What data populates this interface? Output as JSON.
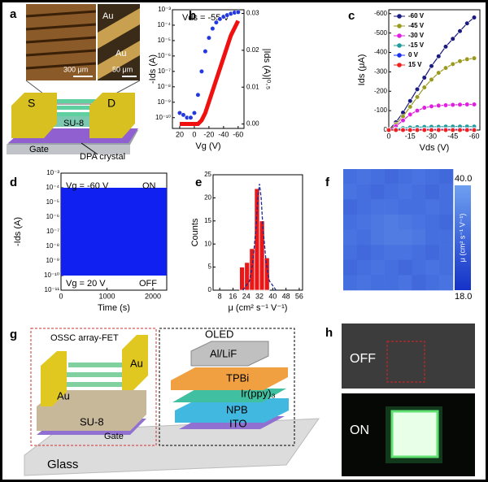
{
  "panel_a": {
    "label": "a",
    "photo_texts": [
      "Au",
      "Au",
      "300 μm",
      "50 μm"
    ],
    "device_texts": [
      "S",
      "D",
      "SU-8",
      "Gate",
      "DPA crystal"
    ]
  },
  "panel_g": {
    "label": "g",
    "texts": [
      "OSSC array-FET",
      "Au",
      "Au",
      "SU-8",
      "Gate",
      "OLED",
      "Al/LiF",
      "TPBi",
      "Ir(ppy)₃",
      "NPB",
      "ITO",
      "Glass"
    ]
  },
  "panel_h": {
    "label": "h",
    "texts": [
      "OFF",
      "ON"
    ]
  },
  "chart_data": [
    {
      "type": "line",
      "label": "b",
      "annotation": "Vds = -55 V",
      "xlabel": "Vg (V)",
      "ylabel": "-Ids (A)",
      "y2label": "|Ids (A)|⁰·⁵",
      "log": true,
      "x": [
        20,
        15,
        10,
        5,
        0,
        -5,
        -10,
        -15,
        -20,
        -25,
        -30,
        -35,
        -40,
        -45,
        -50,
        -55,
        -60
      ],
      "xlim": [
        30,
        -68
      ],
      "xticks": [
        20,
        0,
        -20,
        -40,
        -60
      ],
      "ylim": [
        2e-11,
        0.001
      ],
      "yticks": [
        {
          "value": 0.001,
          "label": "10⁻³"
        },
        {
          "value": 0.0001,
          "label": "10⁻⁴"
        },
        {
          "value": 1e-05,
          "label": "10⁻⁵"
        },
        {
          "value": 1e-06,
          "label": "10⁻⁶"
        },
        {
          "value": 1e-07,
          "label": "10⁻⁷"
        },
        {
          "value": 1e-08,
          "label": "10⁻⁸"
        },
        {
          "value": 1e-09,
          "label": "10⁻⁹"
        },
        {
          "value": 1e-10,
          "label": "10⁻¹⁰"
        }
      ],
      "y2lim": [
        -0.0012,
        0.031
      ],
      "y2ticks": [
        {
          "value": 0,
          "label": "0.00"
        },
        {
          "value": 0.01,
          "label": "0.01"
        },
        {
          "value": 0.02,
          "label": "0.02"
        },
        {
          "value": 0.03,
          "label": "0.03"
        }
      ],
      "series": [
        {
          "color": "#2438e0",
          "style": "markers",
          "values": [
            2e-10,
            1.5e-10,
            1e-10,
            1e-10,
            2e-10,
            3e-09,
            1e-07,
            2e-06,
            1.5e-05,
            6e-05,
            0.00015,
            0.00025,
            0.00035,
            0.00045,
            0.00055,
            0.00065,
            0.0007
          ]
        },
        {
          "color": "#f01010",
          "style": "line",
          "axis": "y2",
          "values": [
            0,
            0,
            0,
            0,
            0,
            0,
            0.001,
            0.003,
            0.006,
            0.009,
            0.012,
            0.015,
            0.018,
            0.021,
            0.024,
            0.026,
            0.028
          ]
        }
      ]
    },
    {
      "type": "line",
      "label": "c",
      "xlabel": "Vds (V)",
      "ylabel": "Ids (μA)",
      "legend": "upper left",
      "x": [
        0,
        -5,
        -10,
        -15,
        -20,
        -25,
        -30,
        -35,
        -40,
        -45,
        -50,
        -55,
        -60
      ],
      "xlim": [
        0,
        -64
      ],
      "xticks": [
        0,
        -15,
        -30,
        -45,
        -60
      ],
      "ylim": [
        0,
        -620
      ],
      "yticks": [
        0,
        -100,
        -200,
        -300,
        -400,
        -500,
        -600
      ],
      "series": [
        {
          "name": "-60 V",
          "color": "#1a1a80",
          "style": "line+markers",
          "values": [
            0,
            -40,
            -90,
            -150,
            -210,
            -270,
            -330,
            -380,
            -430,
            -470,
            -510,
            -550,
            -580
          ]
        },
        {
          "name": "-45 V",
          "color": "#9a9a20",
          "style": "line+markers",
          "values": [
            0,
            -30,
            -70,
            -120,
            -170,
            -220,
            -260,
            -295,
            -320,
            -340,
            -355,
            -365,
            -370
          ]
        },
        {
          "name": "-30 V",
          "color": "#e020e0",
          "style": "line+markers",
          "values": [
            0,
            -20,
            -50,
            -80,
            -100,
            -115,
            -122,
            -126,
            -128,
            -130,
            -131,
            -132,
            -132
          ]
        },
        {
          "name": "-15 V",
          "color": "#209a9a",
          "style": "line+markers",
          "values": [
            0,
            -5,
            -10,
            -13,
            -15,
            -16,
            -17,
            -17,
            -18,
            -18,
            -18,
            -18,
            -18
          ]
        },
        {
          "name": "0 V",
          "color": "#1a30f0",
          "style": "line+markers",
          "values": [
            0,
            -1,
            -2,
            -2,
            -3,
            -3,
            -3,
            -3,
            -3,
            -3,
            -3,
            -3,
            -3
          ]
        },
        {
          "name": "15 V",
          "color": "#f02020",
          "style": "line+markers",
          "values": [
            0,
            0,
            0,
            0,
            0,
            0,
            0,
            0,
            0,
            0,
            0,
            0,
            0
          ]
        }
      ]
    },
    {
      "type": "switching",
      "label": "d",
      "xlabel": "Time (s)",
      "ylabel": "-Ids (A)",
      "log": true,
      "color": "#1020f0",
      "annotations": [
        "Vg = -60 V",
        "ON",
        "Vg = 20 V",
        "OFF"
      ],
      "x": [
        0,
        2300
      ],
      "levels": [
        1e-10,
        0.0001
      ],
      "xlim": [
        0,
        2300
      ],
      "xticks": [
        0,
        1000,
        2000
      ],
      "ylim": [
        1e-11,
        0.001
      ],
      "yticks": [
        {
          "value": 0.001,
          "label": "10⁻³"
        },
        {
          "value": 0.0001,
          "label": "10⁻⁴"
        },
        {
          "value": 1e-05,
          "label": "10⁻⁵"
        },
        {
          "value": 1e-06,
          "label": "10⁻⁶"
        },
        {
          "value": 1e-07,
          "label": "10⁻⁷"
        },
        {
          "value": 1e-08,
          "label": "10⁻⁸"
        },
        {
          "value": 1e-09,
          "label": "10⁻⁹"
        },
        {
          "value": 1e-10,
          "label": "10⁻¹⁰"
        },
        {
          "value": 1e-11,
          "label": "10⁻¹¹"
        }
      ]
    },
    {
      "type": "histogram",
      "label": "e",
      "xlabel": "μ (cm² s⁻¹ V⁻¹)",
      "ylabel": "Counts",
      "color": "#e81818",
      "bins": [
        20,
        23,
        26,
        29,
        32,
        35,
        38
      ],
      "counts": [
        5,
        6,
        9,
        22,
        15,
        7
      ],
      "fit": {
        "color": "#1a2a90",
        "x": [
          22,
          26,
          28,
          30,
          31,
          32,
          33,
          34,
          36,
          38,
          42
        ],
        "values": [
          0,
          2,
          6,
          14,
          20,
          23,
          20,
          14,
          6,
          2,
          0
        ]
      },
      "xlim": [
        4,
        58
      ],
      "xticks": [
        8,
        16,
        24,
        32,
        40,
        48,
        56
      ],
      "ylim": [
        0,
        25
      ],
      "yticks": [
        0,
        5,
        10,
        15,
        20,
        25
      ]
    },
    {
      "type": "heatmap",
      "label": "f",
      "colorbar_label": "μ (cm² s⁻¹ V⁻¹)",
      "clim": [
        18,
        40
      ],
      "cticks": [
        {
          "value": 40,
          "label": "40.0"
        },
        {
          "value": 18,
          "label": "18.0"
        }
      ],
      "values": [
        [
          30,
          31,
          30,
          29,
          30,
          31,
          30,
          29
        ],
        [
          31,
          30,
          29,
          30,
          31,
          30,
          29,
          30
        ],
        [
          29,
          30,
          31,
          31,
          30,
          30,
          31,
          30
        ],
        [
          30,
          31,
          32,
          33,
          32,
          31,
          30,
          29
        ],
        [
          31,
          30,
          32,
          33,
          33,
          32,
          30,
          30
        ],
        [
          30,
          29,
          30,
          31,
          31,
          30,
          29,
          30
        ],
        [
          29,
          30,
          31,
          30,
          29,
          30,
          31,
          30
        ],
        [
          30,
          31,
          30,
          30,
          31,
          29,
          30,
          31
        ]
      ]
    }
  ]
}
